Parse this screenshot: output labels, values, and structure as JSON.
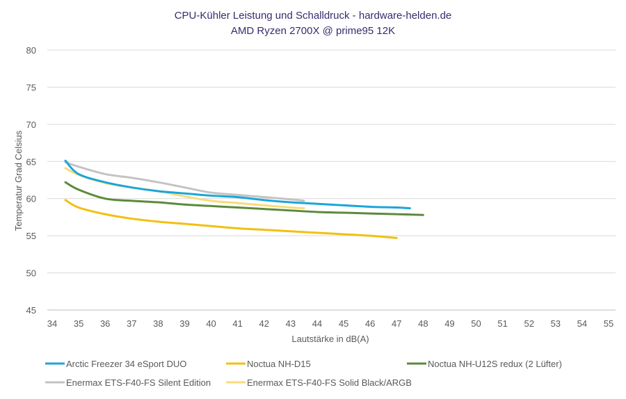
{
  "chart_data": {
    "type": "line",
    "title": "CPU-Kühler Leistung und Schalldruck - hardware-helden.de",
    "subtitle": "AMD Ryzen 2700X @ prime95 12K",
    "xlabel": "Lautstärke in dB(A)",
    "ylabel": "Temperatur Grad Celsius",
    "xlim": [
      34,
      55
    ],
    "ylim": [
      45,
      80
    ],
    "xticks": [
      "34",
      "35",
      "36",
      "37",
      "38",
      "39",
      "40",
      "41",
      "42",
      "43",
      "44",
      "45",
      "46",
      "47",
      "48",
      "49",
      "50",
      "51",
      "52",
      "53",
      "54",
      "55"
    ],
    "yticks": [
      "45",
      "50",
      "55",
      "60",
      "65",
      "70",
      "75",
      "80"
    ],
    "grid": true,
    "legend_position": "bottom",
    "series": [
      {
        "name": "Arctic Freezer 34 eSport DUO",
        "color": "#1aa6d9",
        "points": [
          [
            34.5,
            65.1
          ],
          [
            35,
            63.3
          ],
          [
            36,
            62.2
          ],
          [
            37,
            61.5
          ],
          [
            38,
            61
          ],
          [
            39,
            60.7
          ],
          [
            40,
            60.4
          ],
          [
            41,
            60.2
          ],
          [
            42,
            59.8
          ],
          [
            43,
            59.5
          ],
          [
            44,
            59.3
          ],
          [
            45,
            59.1
          ],
          [
            46,
            58.9
          ],
          [
            47,
            58.8
          ],
          [
            47.5,
            58.7
          ]
        ]
      },
      {
        "name": "Noctua NH-D15",
        "color": "#f2c010",
        "points": [
          [
            34.5,
            59.8
          ],
          [
            35,
            58.8
          ],
          [
            36,
            57.9
          ],
          [
            37,
            57.3
          ],
          [
            38,
            56.9
          ],
          [
            39,
            56.6
          ],
          [
            40,
            56.3
          ],
          [
            41,
            56
          ],
          [
            42,
            55.8
          ],
          [
            43,
            55.6
          ],
          [
            44,
            55.4
          ],
          [
            45,
            55.2
          ],
          [
            46,
            55
          ],
          [
            47,
            54.7
          ]
        ]
      },
      {
        "name": "Noctua NH-U12S redux (2 Lüfter)",
        "color": "#5a8a3a",
        "points": [
          [
            34.5,
            62.2
          ],
          [
            35,
            61.2
          ],
          [
            36,
            60
          ],
          [
            37,
            59.7
          ],
          [
            38,
            59.5
          ],
          [
            39,
            59.2
          ],
          [
            40,
            59
          ],
          [
            41,
            58.8
          ],
          [
            42,
            58.6
          ],
          [
            43,
            58.4
          ],
          [
            44,
            58.2
          ],
          [
            45,
            58.1
          ],
          [
            46,
            58
          ],
          [
            47,
            57.9
          ],
          [
            48,
            57.8
          ]
        ]
      },
      {
        "name": "Enermax ETS-F40-FS Silent Edition",
        "color": "#c3c3c3",
        "points": [
          [
            34.5,
            64.9
          ],
          [
            35,
            64.3
          ],
          [
            36,
            63.3
          ],
          [
            37,
            62.8
          ],
          [
            38,
            62.2
          ],
          [
            39,
            61.5
          ],
          [
            40,
            60.8
          ],
          [
            41,
            60.5
          ],
          [
            42,
            60.2
          ],
          [
            43,
            59.9
          ],
          [
            43.5,
            59.7
          ]
        ]
      },
      {
        "name": "Enermax ETS-F40-FS Solid Black/ARGB",
        "color": "#f7dc7a",
        "points": [
          [
            34.5,
            64.1
          ],
          [
            35,
            63.2
          ],
          [
            36,
            62.1
          ],
          [
            37,
            61.5
          ],
          [
            38,
            61
          ],
          [
            39,
            60.3
          ],
          [
            40,
            59.7
          ],
          [
            41,
            59.4
          ],
          [
            42,
            59.1
          ],
          [
            43,
            58.8
          ],
          [
            43.5,
            58.7
          ]
        ]
      }
    ]
  }
}
